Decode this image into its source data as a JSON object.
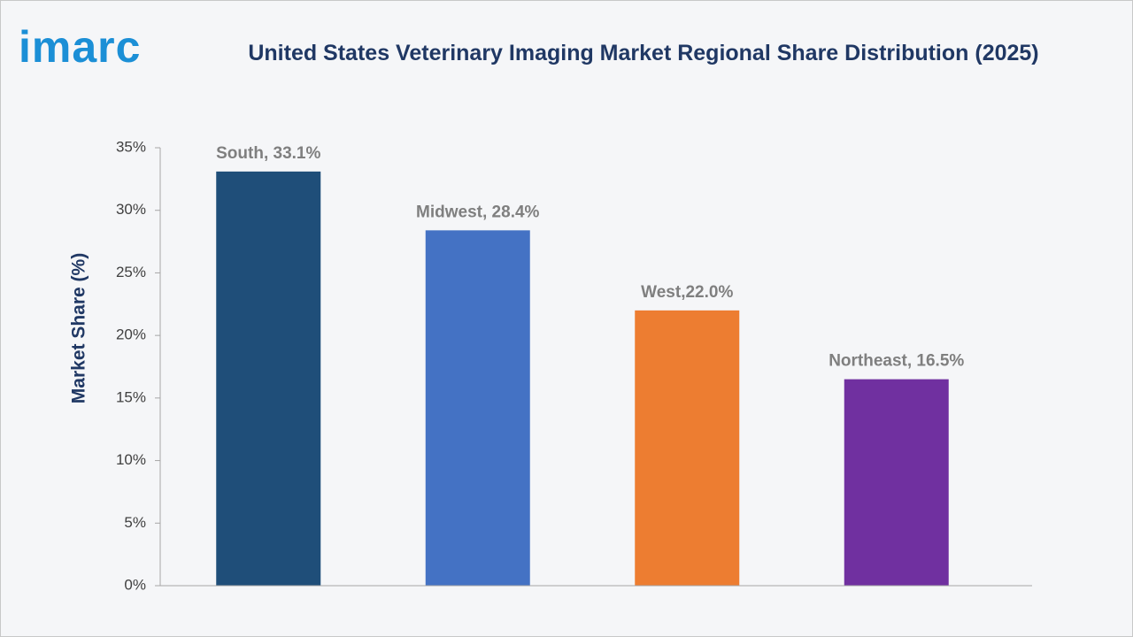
{
  "brand": "imarc",
  "chart_data": {
    "type": "bar",
    "title": "United States Veterinary Imaging Market Regional Share Distribution (2025)",
    "y_label": "Market Share (%)",
    "values": [
      33.1,
      28.4,
      22.0,
      16.5
    ],
    "value_labels": [
      "South, 33.1%",
      "Midwest, 28.4%",
      "West,22.0%",
      "Northeast, 16.5%"
    ],
    "colors": [
      "#1f4e79",
      "#4472c4",
      "#ed7d31",
      "#7030a0"
    ],
    "ylim": [
      0,
      35
    ],
    "yticks": [
      {
        "value": 0,
        "label": "0%"
      },
      {
        "value": 5,
        "label": "5%"
      },
      {
        "value": 10,
        "label": "10%"
      },
      {
        "value": 15,
        "label": "15%"
      },
      {
        "value": 20,
        "label": "20%"
      },
      {
        "value": 25,
        "label": "25%"
      },
      {
        "value": 30,
        "label": "30%"
      },
      {
        "value": 35,
        "label": "35%"
      }
    ],
    "grid": false
  }
}
